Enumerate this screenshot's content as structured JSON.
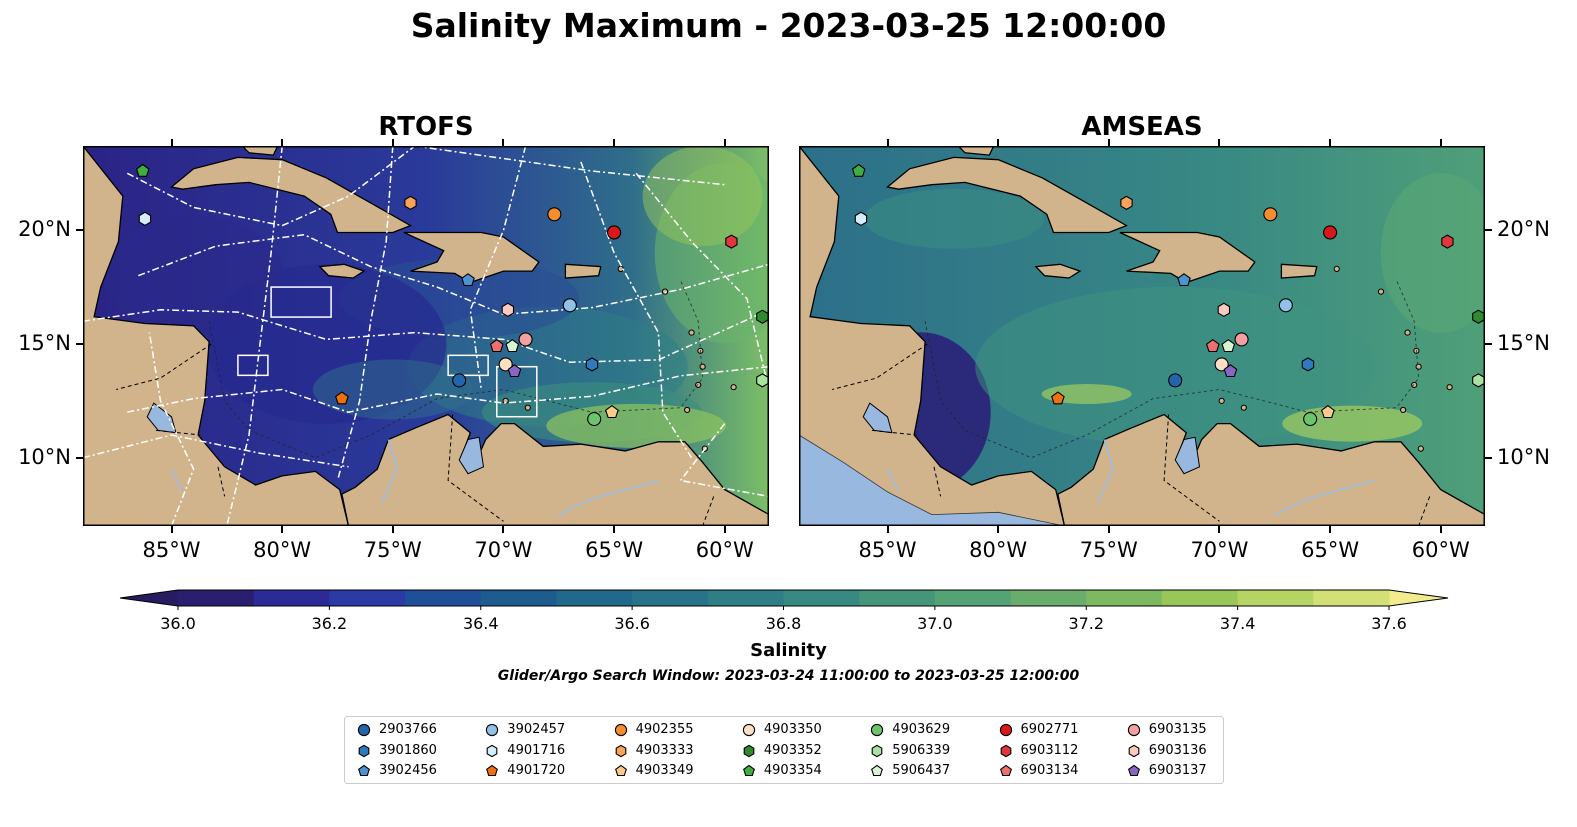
{
  "suptitle": "Salinity Maximum - 2023-03-25 12:00:00",
  "panels": [
    {
      "title": "RTOFS",
      "model": "RTOFS"
    },
    {
      "title": "AMSEAS",
      "model": "AMSEAS"
    }
  ],
  "map_extent": {
    "lon": [
      -89,
      -58
    ],
    "lat": [
      7,
      23.7
    ]
  },
  "lon_ticks": [
    -85,
    -80,
    -75,
    -70,
    -65,
    -60
  ],
  "lon_tick_labels": [
    "85°W",
    "80°W",
    "75°W",
    "70°W",
    "65°W",
    "60°W"
  ],
  "lat_ticks": [
    10,
    15,
    20
  ],
  "lat_tick_labels": [
    "10°N",
    "15°N",
    "20°N"
  ],
  "colorbar": {
    "label": "Salinity",
    "min": 36.0,
    "max": 37.6,
    "step": 0.1,
    "tick_values": [
      36.0,
      36.2,
      36.4,
      36.6,
      36.8,
      37.0,
      37.2,
      37.4,
      37.6
    ],
    "tick_labels": [
      "36.0",
      "36.2",
      "36.4",
      "36.6",
      "36.8",
      "37.0",
      "37.2",
      "37.4",
      "37.6"
    ],
    "colors": [
      "#2a1f6e",
      "#2c2a97",
      "#2b3aa5",
      "#1f4f99",
      "#1e5c8f",
      "#20688c",
      "#287389",
      "#2f7e86",
      "#378982",
      "#45957b",
      "#55a274",
      "#68ad6b",
      "#7eb962",
      "#98c65a",
      "#b6d463",
      "#d3e078",
      "#efe98e"
    ],
    "over_color": "#f3ec8f",
    "under_color": "#271c62"
  },
  "search_window": "Glider/Argo Search Window: 2023-03-24 11:00:00 to 2023-03-25 12:00:00",
  "colors": {
    "land": "#d2b48c",
    "lake": "#99b8e0",
    "tracks_rtofs": "#ffffff",
    "ocean_deep_rtofs": "#2a2280"
  },
  "floats": [
    {
      "id": "2903766",
      "marker": "circle",
      "color": "#2166ac",
      "lon": -72.0,
      "lat": 13.4
    },
    {
      "id": "3901860",
      "marker": "hexagon",
      "color": "#2d7bbf",
      "lon": -66.0,
      "lat": 14.1
    },
    {
      "id": "3902456",
      "marker": "pentagon",
      "color": "#4c93cf",
      "lon": -71.6,
      "lat": 17.8
    },
    {
      "id": "3902457",
      "marker": "circle",
      "color": "#90c2e8",
      "lon": -67.0,
      "lat": 16.7
    },
    {
      "id": "4901716",
      "marker": "hexagon",
      "color": "#d5edfb",
      "lon": -86.2,
      "lat": 20.5
    },
    {
      "id": "4901720",
      "marker": "pentagon",
      "color": "#f07010",
      "lon": -77.3,
      "lat": 12.6
    },
    {
      "id": "4902355",
      "marker": "circle",
      "color": "#f58c2e",
      "lon": -67.7,
      "lat": 20.7
    },
    {
      "id": "4903333",
      "marker": "hexagon",
      "color": "#f9a45a",
      "lon": -74.2,
      "lat": 21.2
    },
    {
      "id": "4903349",
      "marker": "pentagon",
      "color": "#fccb8c",
      "lon": -65.1,
      "lat": 12.0
    },
    {
      "id": "4903350",
      "marker": "circle",
      "color": "#fde0c3",
      "lon": -69.9,
      "lat": 14.1
    },
    {
      "id": "4903352",
      "marker": "hexagon",
      "color": "#2e8b2e",
      "lon": -58.3,
      "lat": 16.2
    },
    {
      "id": "4903354",
      "marker": "pentagon",
      "color": "#3fad3f",
      "lon": -86.3,
      "lat": 22.6
    },
    {
      "id": "4903629",
      "marker": "circle",
      "color": "#6cc46c",
      "lon": -65.9,
      "lat": 11.7
    },
    {
      "id": "5906339",
      "marker": "hexagon",
      "color": "#a7e3a1",
      "lon": -58.3,
      "lat": 13.4
    },
    {
      "id": "5906437",
      "marker": "pentagon",
      "color": "#d6f5d0",
      "lon": -69.6,
      "lat": 14.9
    },
    {
      "id": "6902771",
      "marker": "circle",
      "color": "#d7191c",
      "lon": -65.0,
      "lat": 19.9
    },
    {
      "id": "6903112",
      "marker": "hexagon",
      "color": "#e0373a",
      "lon": -59.7,
      "lat": 19.5
    },
    {
      "id": "6903134",
      "marker": "pentagon",
      "color": "#ef6f6f",
      "lon": -70.3,
      "lat": 14.9
    },
    {
      "id": "6903135",
      "marker": "circle",
      "color": "#f4a0a0",
      "lon": -69.0,
      "lat": 15.2
    },
    {
      "id": "6903136",
      "marker": "hexagon",
      "color": "#fcc8c0",
      "lon": -69.8,
      "lat": 16.5
    },
    {
      "id": "6903137",
      "marker": "pentagon",
      "color": "#8a66c4",
      "lon": -69.5,
      "lat": 13.8
    }
  ]
}
